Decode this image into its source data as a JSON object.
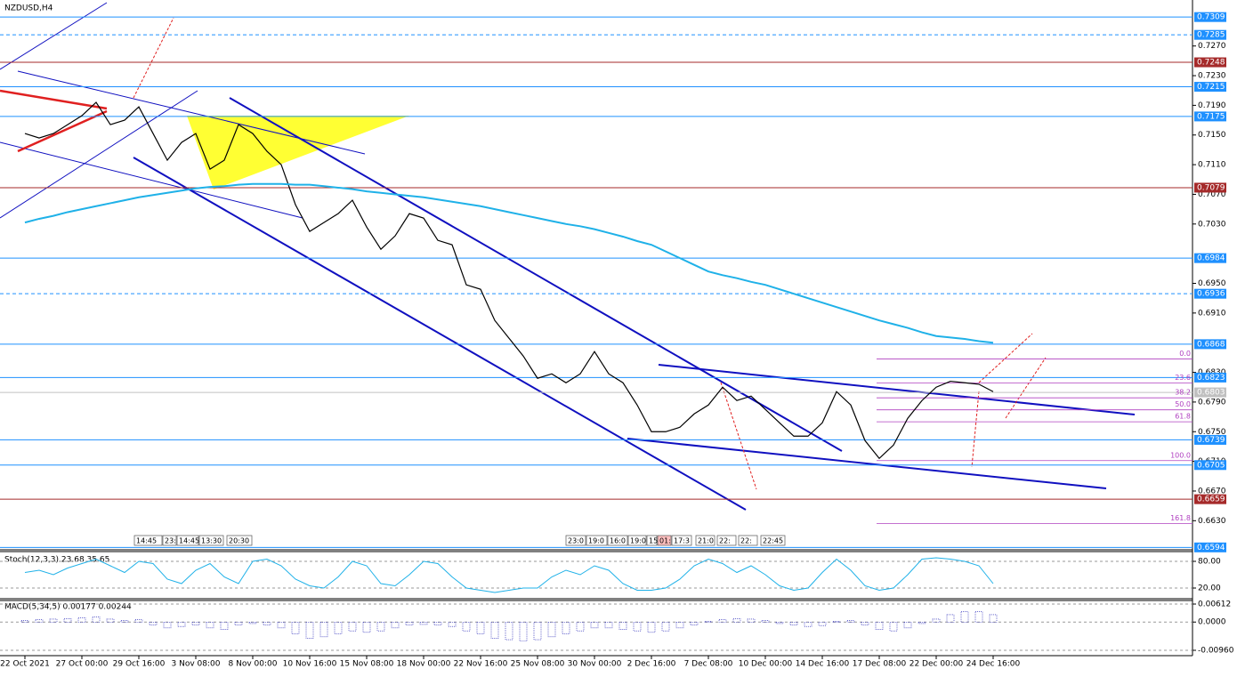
{
  "chart_data": [
    {
      "type": "line",
      "title": "NZDUSD,H4",
      "categories": [
        "22 Oct 2021",
        null,
        null,
        null,
        "27 Oct 00:00",
        null,
        null,
        null,
        "29 Oct 16:00",
        null,
        null,
        null,
        "3 Nov 08:00",
        null,
        null,
        null,
        "8 Nov 00:00",
        null,
        null,
        null,
        "10 Nov 16:00",
        null,
        null,
        null,
        "15 Nov 08:00",
        null,
        null,
        null,
        "18 Nov 00:00",
        null,
        null,
        null,
        "22 Nov 16:00",
        null,
        null,
        null,
        "25 Nov 08:00",
        null,
        null,
        null,
        "30 Nov 00:00",
        null,
        null,
        null,
        "2 Dec 16:00",
        null,
        null,
        null,
        "7 Dec 08:00",
        null,
        null,
        null,
        "10 Dec 00:00",
        null,
        null,
        null,
        "14 Dec 16:00",
        null,
        null,
        null,
        "17 Dec 08:00",
        null,
        null,
        null,
        "22 Dec 00:00",
        null,
        null,
        null,
        "24 Dec 16:00"
      ],
      "series": [
        {
          "color": "#000000",
          "values": [
            0.7152,
            0.7146,
            0.7152,
            0.7164,
            0.7176,
            0.7194,
            0.7164,
            0.717,
            0.7188,
            0.7152,
            0.7116,
            0.714,
            0.7152,
            0.7104,
            0.7116,
            0.7164,
            0.7152,
            0.7128,
            0.711,
            0.7056,
            0.702,
            0.7032,
            0.7044,
            0.7062,
            0.7026,
            0.6996,
            0.7014,
            0.7044,
            0.7038,
            0.7008,
            0.7002,
            0.6948,
            0.6942,
            0.69,
            0.6876,
            0.6852,
            0.6822,
            0.6828,
            0.6816,
            0.6828,
            0.6858,
            0.6828,
            0.6816,
            0.6786,
            0.675,
            0.675,
            0.6756,
            0.6774,
            0.6786,
            0.681,
            0.6792,
            0.6798,
            0.678,
            0.6762,
            0.6744,
            0.6744,
            0.6762,
            0.6804,
            0.6786,
            0.6738,
            0.6714,
            0.6732,
            0.6768,
            0.6792,
            0.681,
            0.6818,
            0.6816,
            0.6814,
            0.6804
          ]
        },
        {
          "color": "#1fb1e8",
          "values": [
            0.7032,
            0.7037,
            0.7041,
            0.7046,
            0.705,
            0.7054,
            0.7058,
            0.7062,
            0.7066,
            0.7069,
            0.7072,
            0.7075,
            0.7078,
            0.708,
            0.7081,
            0.7083,
            0.7084,
            0.7084,
            0.7084,
            0.7083,
            0.7083,
            0.7081,
            0.7079,
            0.7077,
            0.7074,
            0.7072,
            0.707,
            0.7068,
            0.7066,
            0.7063,
            0.706,
            0.7057,
            0.7054,
            0.705,
            0.7046,
            0.7042,
            0.7038,
            0.7034,
            0.703,
            0.7027,
            0.7023,
            0.7018,
            0.7013,
            0.7007,
            0.7002,
            0.6993,
            0.6984,
            0.6975,
            0.6966,
            0.6961,
            0.6957,
            0.6952,
            0.6948,
            0.6942,
            0.6936,
            0.693,
            0.6924,
            0.6918,
            0.6912,
            0.6906,
            0.69,
            0.6895,
            0.689,
            0.6884,
            0.6879,
            0.6877,
            0.6875,
            0.6872,
            0.687
          ]
        }
      ],
      "ylim": [
        0.6592,
        0.7326
      ],
      "yticks": [
        {
          "value": 0.727,
          "label": "0.7270"
        },
        {
          "value": 0.723,
          "label": "0.7230"
        },
        {
          "value": 0.719,
          "label": "0.7190"
        },
        {
          "value": 0.715,
          "label": "0.7150"
        },
        {
          "value": 0.711,
          "label": "0.7110"
        },
        {
          "value": 0.707,
          "label": "0.7070"
        },
        {
          "value": 0.703,
          "label": "0.7030"
        },
        {
          "value": 0.695,
          "label": "0.6950"
        },
        {
          "value": 0.691,
          "label": "0.6910"
        },
        {
          "value": 0.683,
          "label": "0.6830"
        },
        {
          "value": 0.679,
          "label": "0.6790"
        },
        {
          "value": 0.675,
          "label": "0.6750"
        },
        {
          "value": 0.671,
          "label": "0.6710"
        },
        {
          "value": 0.667,
          "label": "0.6670"
        },
        {
          "value": 0.663,
          "label": "0.6630"
        }
      ],
      "levels": [
        {
          "value": 0.7309,
          "color": "#1e90ff",
          "style": "solid"
        },
        {
          "value": 0.7285,
          "color": "#1e90ff",
          "style": "dashed"
        },
        {
          "value": 0.7248,
          "color": "#a52a2a",
          "style": "solid"
        },
        {
          "value": 0.7215,
          "color": "#1e90ff",
          "style": "solid"
        },
        {
          "value": 0.7175,
          "color": "#1e90ff",
          "style": "solid"
        },
        {
          "value": 0.7079,
          "color": "#a52a2a",
          "style": "solid"
        },
        {
          "value": 0.6984,
          "color": "#1e90ff",
          "style": "solid"
        },
        {
          "value": 0.6936,
          "color": "#1e90ff",
          "style": "dashed"
        },
        {
          "value": 0.6868,
          "color": "#1e90ff",
          "style": "solid"
        },
        {
          "value": 0.6823,
          "color": "#1e90ff",
          "style": "solid"
        },
        {
          "value": 0.6803,
          "color": "#c0c0c0",
          "style": "solid"
        },
        {
          "value": 0.6739,
          "color": "#1e90ff",
          "style": "solid"
        },
        {
          "value": 0.6705,
          "color": "#1e90ff",
          "style": "solid"
        },
        {
          "value": 0.6659,
          "color": "#a52a2a",
          "style": "solid"
        },
        {
          "value": 0.6594,
          "color": "#1e90ff",
          "style": "solid"
        }
      ],
      "fib": {
        "high": 0.6848,
        "low": 0.6711,
        "color": "#b040c0",
        "levels": [
          {
            "value": 0,
            "label": "0.0"
          },
          23.6,
          38.2,
          {
            "value": 50,
            "label": "50.0"
          },
          61.8,
          {
            "value": 100,
            "label": "100.0"
          },
          161.8
        ]
      },
      "timeframe_labels": [
        "14:45",
        "23:",
        "14:45",
        "13:30",
        "20:30",
        "23:0",
        "19:0",
        "16:0",
        "19:0",
        "15",
        "01:",
        "17:3",
        "21:0",
        "22:",
        "22:",
        "22:45"
      ]
    },
    {
      "type": "line",
      "title": "Stoch(12,3,3) 23.68 35.65",
      "series": [
        {
          "color": "#1fb1e8",
          "values": [
            55,
            60,
            50,
            65,
            75,
            85,
            70,
            55,
            80,
            75,
            40,
            30,
            60,
            75,
            45,
            30,
            80,
            85,
            70,
            40,
            25,
            20,
            45,
            80,
            70,
            30,
            25,
            50,
            80,
            75,
            45,
            20,
            15,
            10,
            15,
            20,
            20,
            45,
            60,
            50,
            70,
            60,
            30,
            15,
            15,
            20,
            40,
            70,
            85,
            75,
            55,
            70,
            50,
            25,
            15,
            20,
            55,
            85,
            60,
            25,
            15,
            20,
            50,
            85,
            88,
            85,
            80,
            70,
            30
          ]
        }
      ],
      "ylim": [
        0,
        100
      ],
      "yticks": [
        {
          "value": 80,
          "label": "80.00"
        },
        {
          "value": 20,
          "label": "20.00"
        }
      ]
    },
    {
      "type": "bar",
      "title": "MACD(5,34,5) 0.00177 0.00244",
      "color": "#1010b0",
      "values": [
        0.0005,
        0.0008,
        0.001,
        0.0012,
        0.0015,
        0.0018,
        0.001,
        0.0005,
        0.0008,
        -0.001,
        -0.002,
        -0.0015,
        -0.001,
        -0.002,
        -0.0025,
        -0.001,
        -0.0005,
        -0.001,
        -0.002,
        -0.004,
        -0.0055,
        -0.005,
        -0.004,
        -0.003,
        -0.0035,
        -0.003,
        -0.002,
        -0.001,
        -0.0008,
        -0.001,
        -0.0015,
        -0.003,
        -0.004,
        -0.0055,
        -0.006,
        -0.0065,
        -0.006,
        -0.005,
        -0.004,
        -0.003,
        -0.002,
        -0.002,
        -0.0025,
        -0.003,
        -0.0035,
        -0.003,
        -0.002,
        -0.001,
        0.0002,
        0.0008,
        0.0012,
        0.001,
        0.0005,
        -0.0005,
        -0.001,
        -0.0015,
        -0.0012,
        0.0002,
        0.0005,
        -0.001,
        -0.0025,
        -0.003,
        -0.002,
        -0.0005,
        0.001,
        0.0025,
        0.0035,
        0.0035,
        0.0025
      ],
      "ylim": [
        -0.0096,
        0.00612
      ],
      "yticks": [
        0.00612,
        {
          "value": 0,
          "label": "0.0000"
        },
        {
          "value": -0.0096,
          "label": "-0.00960"
        }
      ]
    }
  ]
}
